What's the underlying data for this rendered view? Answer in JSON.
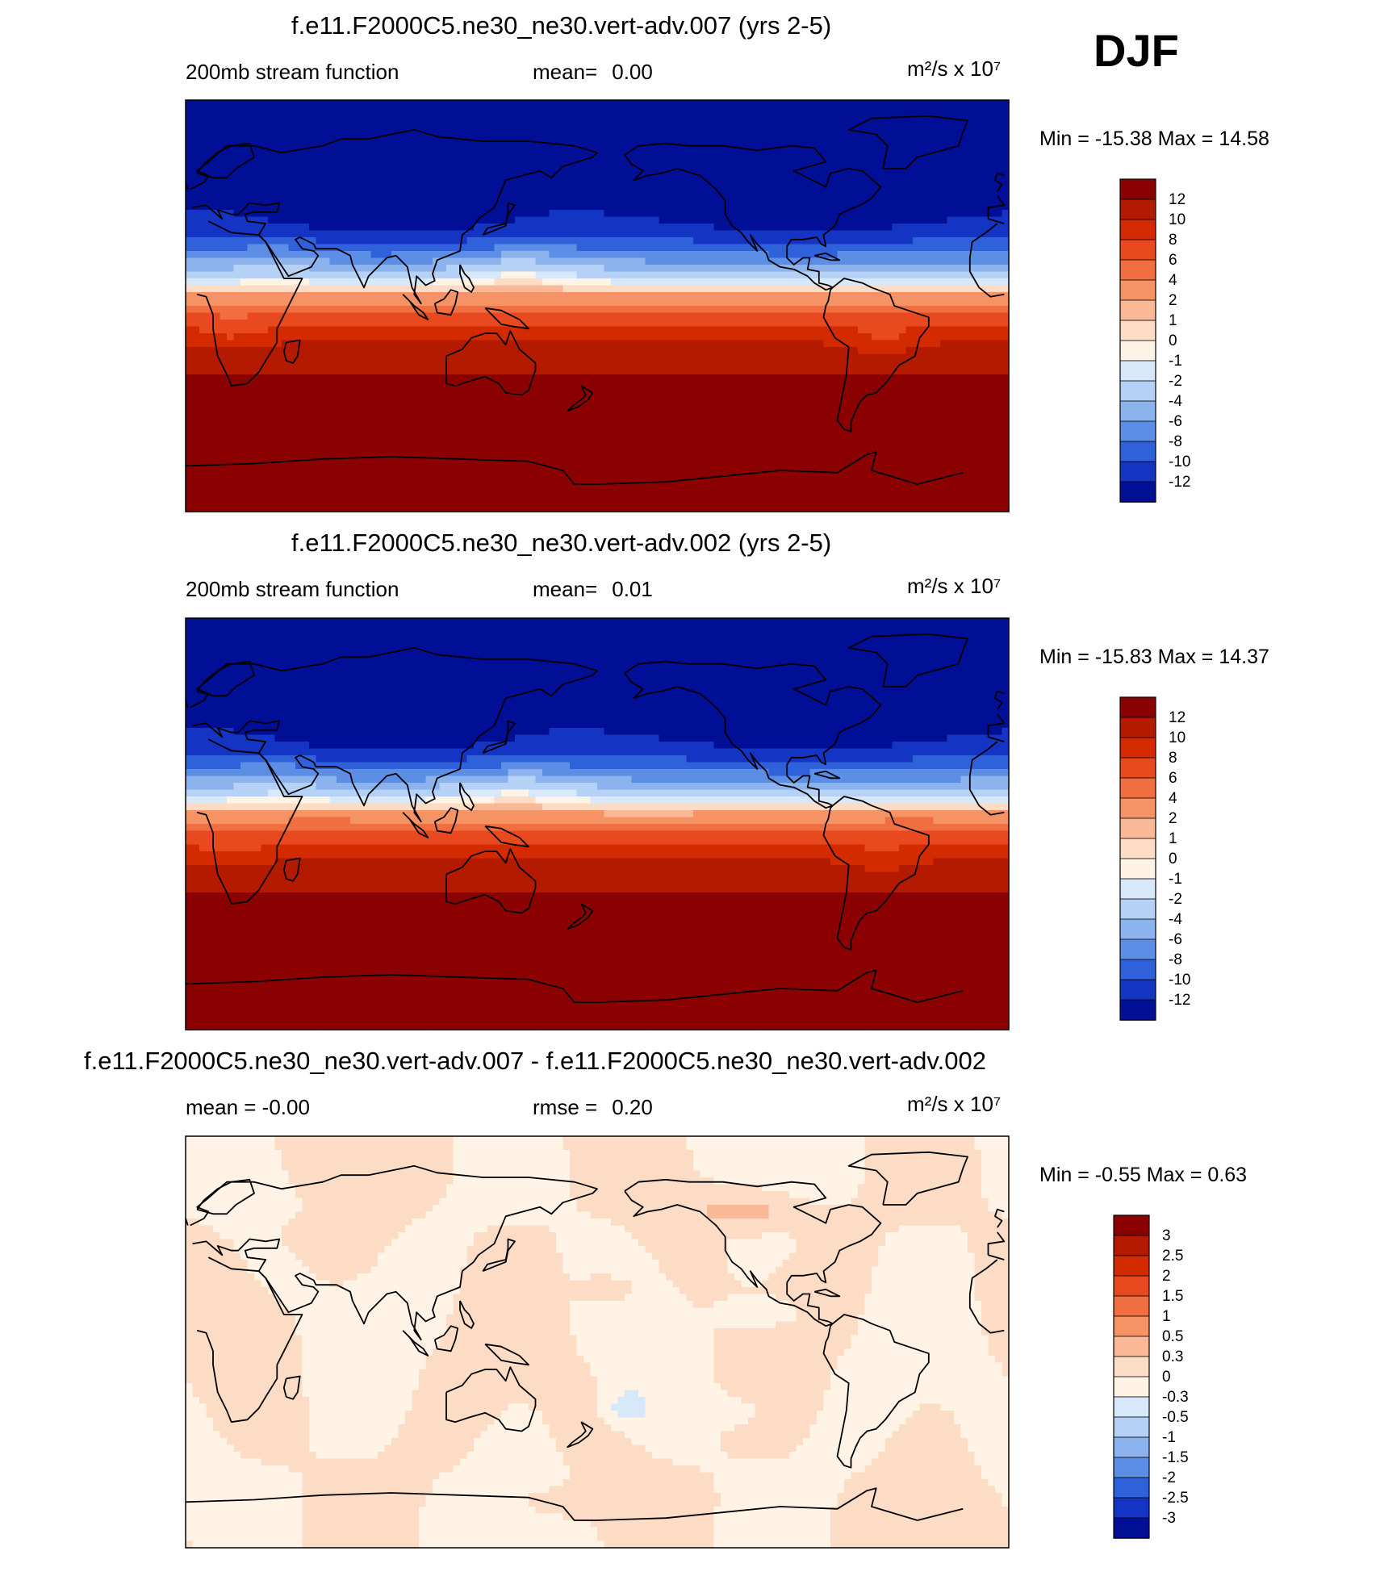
{
  "season": "DJF",
  "chart_data": [
    {
      "type": "heatmap",
      "title": "f.e11.F2000C5.ne30_ne30.vert-adv.007 (yrs 2-5)",
      "left_label": "200mb stream function",
      "center_prefix": "mean=",
      "center_value": "0.00",
      "units_text": "m²/s x 10⁷",
      "minmax_text": "Min = -15.38 Max =  14.58",
      "min": -15.38,
      "max": 14.58,
      "levels": [
        "12",
        "10",
        "8",
        "6",
        "4",
        "2",
        "1",
        "0",
        "-1",
        "-2",
        "-4",
        "-6",
        "-8",
        "-10",
        "-12"
      ],
      "colors": [
        "#8b0000",
        "#b31a00",
        "#d42a00",
        "#e8491f",
        "#f06e40",
        "#f59365",
        "#f9b896",
        "#fcdcc5",
        "#fff3e6",
        "#d6e8fa",
        "#b5d1f5",
        "#8cb3ee",
        "#5c8ee6",
        "#2f61db",
        "#1434c3",
        "#000f96"
      ],
      "field": "absolute"
    },
    {
      "type": "heatmap",
      "title": "f.e11.F2000C5.ne30_ne30.vert-adv.002 (yrs 2-5)",
      "left_label": "200mb stream function",
      "center_prefix": "mean=",
      "center_value": "0.01",
      "units_text": "m²/s x 10⁷",
      "minmax_text": "Min = -15.83 Max =  14.37",
      "min": -15.83,
      "max": 14.37,
      "levels": [
        "12",
        "10",
        "8",
        "6",
        "4",
        "2",
        "1",
        "0",
        "-1",
        "-2",
        "-4",
        "-6",
        "-8",
        "-10",
        "-12"
      ],
      "colors": [
        "#8b0000",
        "#b31a00",
        "#d42a00",
        "#e8491f",
        "#f06e40",
        "#f59365",
        "#f9b896",
        "#fcdcc5",
        "#fff3e6",
        "#d6e8fa",
        "#b5d1f5",
        "#8cb3ee",
        "#5c8ee6",
        "#2f61db",
        "#1434c3",
        "#000f96"
      ],
      "field": "absolute"
    },
    {
      "type": "heatmap",
      "title": "f.e11.F2000C5.ne30_ne30.vert-adv.007 - f.e11.F2000C5.ne30_ne30.vert-adv.002",
      "left_label": "mean =  -0.00",
      "center_prefix": "rmse =",
      "center_value": "0.20",
      "units_text": "m²/s x 10⁷",
      "minmax_text": "Min =  -0.55 Max =   0.63",
      "min": -0.55,
      "max": 0.63,
      "levels": [
        "3",
        "2.5",
        "2",
        "1.5",
        "1",
        "0.5",
        "0.3",
        "0",
        "-0.3",
        "-0.5",
        "-1",
        "-1.5",
        "-2",
        "-2.5",
        "-3"
      ],
      "colors": [
        "#8b0000",
        "#b31a00",
        "#d42a00",
        "#e8491f",
        "#f06e40",
        "#f59365",
        "#f9b896",
        "#fcdcc5",
        "#fff3e6",
        "#d6e8fa",
        "#b5d1f5",
        "#8cb3ee",
        "#5c8ee6",
        "#2f61db",
        "#1434c3",
        "#000f96"
      ],
      "field": "difference"
    }
  ]
}
